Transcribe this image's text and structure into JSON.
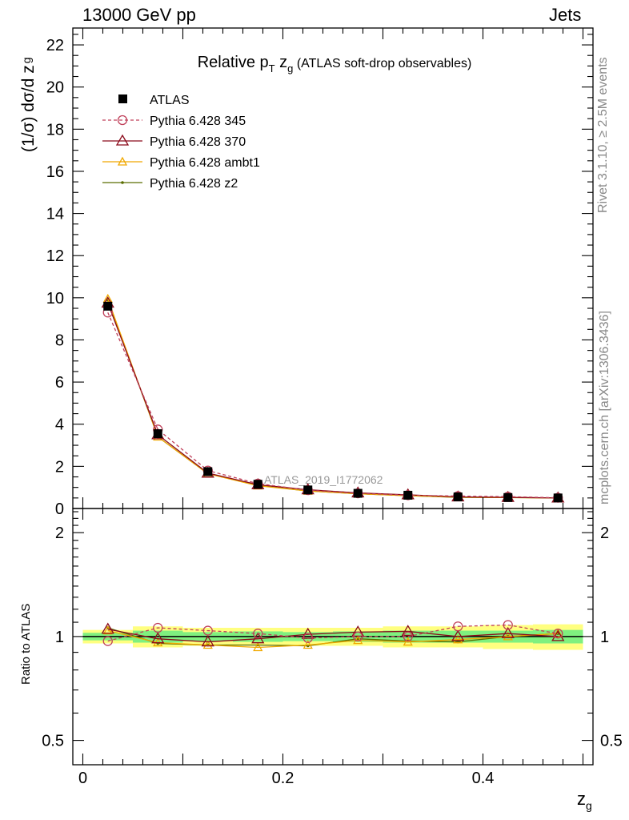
{
  "header": {
    "left": "13000 GeV pp",
    "right": "Jets"
  },
  "side_labels": {
    "rivet": "Rivet 3.1.10, ≥ 2.5M events",
    "mcplots": "mcplots.cern.ch [arXiv:1306.3436]"
  },
  "colors": {
    "ATLAS": "#000000",
    "Pythia 6.428 345": "#c0405a",
    "Pythia 6.428 370": "#8b0a1a",
    "Pythia 6.428 ambt1": "#f0a800",
    "Pythia 6.428 z2": "#5a6e00",
    "band_inner": "#7ff07f",
    "band_outer": "#ffff80"
  },
  "chart_data": [
    {
      "type": "line",
      "title_main": "Relative p",
      "title_sub_T": "T",
      "title_z": " z",
      "title_sub_g": "g",
      "title_rest": " (ATLAS soft-drop observables)",
      "ylabel": "(1/σ) dσ/d z",
      "ylabel_sub": "g",
      "watermark": "ATLAS_2019_I1772062",
      "xlim": [
        -0.01,
        0.51
      ],
      "ylim": [
        0,
        22.8
      ],
      "y_ticks": [
        "0",
        "2",
        "4",
        "6",
        "8",
        "10",
        "12",
        "14",
        "16",
        "18",
        "20",
        "22"
      ],
      "x": [
        0.025,
        0.075,
        0.125,
        0.175,
        0.225,
        0.275,
        0.325,
        0.375,
        0.425,
        0.475
      ],
      "series": [
        {
          "name": "ATLAS",
          "marker": "square",
          "values": [
            9.6,
            3.55,
            1.75,
            1.15,
            0.88,
            0.72,
            0.63,
            0.55,
            0.52,
            0.5
          ]
        },
        {
          "name": "Pythia 6.428 345",
          "marker": "circle",
          "dashed": true,
          "values": [
            9.3,
            3.75,
            1.8,
            1.18,
            0.87,
            0.72,
            0.63,
            0.59,
            0.56,
            0.51
          ]
        },
        {
          "name": "Pythia 6.428 370",
          "marker": "triangle",
          "values": [
            9.75,
            3.5,
            1.68,
            1.13,
            0.89,
            0.74,
            0.65,
            0.55,
            0.53,
            0.5
          ]
        },
        {
          "name": "Pythia 6.428 ambt1",
          "marker": "triangle-small",
          "values": [
            9.95,
            3.4,
            1.65,
            1.08,
            0.83,
            0.7,
            0.61,
            0.54,
            0.52,
            0.5
          ]
        },
        {
          "name": "Pythia 6.428 z2",
          "marker": "dot",
          "values": [
            9.9,
            3.4,
            1.65,
            1.1,
            0.83,
            0.7,
            0.61,
            0.53,
            0.52,
            0.5
          ]
        }
      ]
    },
    {
      "type": "line",
      "ylabel": "Ratio to ATLAS",
      "xlabel": "z",
      "xlabel_sub": "g",
      "xlim": [
        -0.01,
        0.51
      ],
      "ylim": [
        0.425,
        2.35
      ],
      "log_scale": true,
      "y_ticks": [
        "0.5",
        "1",
        "2"
      ],
      "x_ticks": [
        "0",
        "0.2",
        "0.4"
      ],
      "x": [
        0.025,
        0.075,
        0.125,
        0.175,
        0.225,
        0.275,
        0.325,
        0.375,
        0.425,
        0.475
      ],
      "band_inner": [
        0.025,
        0.04,
        0.03,
        0.035,
        0.03,
        0.035,
        0.04,
        0.04,
        0.04,
        0.045
      ],
      "band_outer": [
        0.045,
        0.07,
        0.06,
        0.06,
        0.06,
        0.06,
        0.07,
        0.07,
        0.08,
        0.085
      ],
      "series": [
        {
          "name": "Pythia 6.428 345",
          "marker": "circle",
          "dashed": true,
          "values": [
            0.97,
            1.06,
            1.04,
            1.02,
            0.99,
            1.0,
            1.0,
            1.07,
            1.08,
            1.02
          ]
        },
        {
          "name": "Pythia 6.428 370",
          "marker": "triangle",
          "values": [
            1.05,
            0.985,
            0.965,
            0.985,
            1.015,
            1.03,
            1.035,
            1.0,
            1.02,
            1.0
          ]
        },
        {
          "name": "Pythia 6.428 ambt1",
          "marker": "triangle-small",
          "values": [
            1.04,
            0.96,
            0.945,
            0.93,
            0.945,
            0.975,
            0.965,
            0.98,
            1.0,
            1.02
          ]
        },
        {
          "name": "Pythia 6.428 z2",
          "marker": "dot",
          "values": [
            1.06,
            0.955,
            0.945,
            0.945,
            0.94,
            0.985,
            0.97,
            0.965,
            1.0,
            1.02
          ]
        }
      ]
    }
  ]
}
